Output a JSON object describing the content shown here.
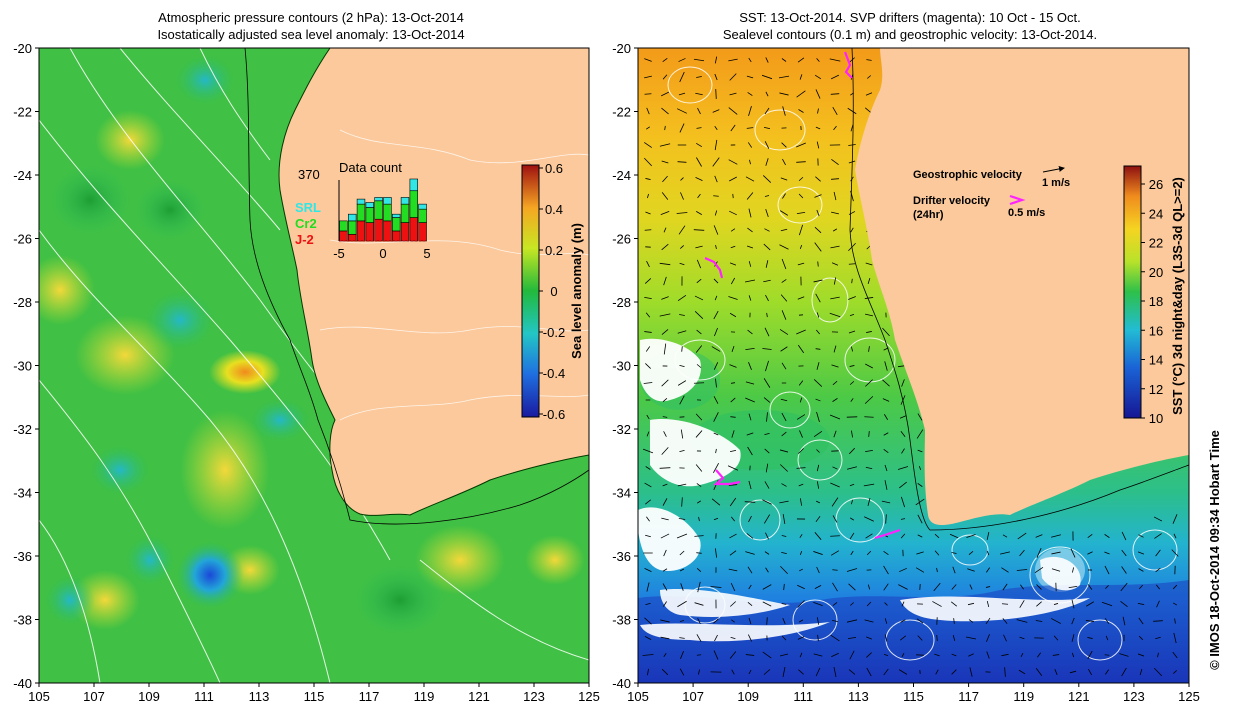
{
  "left_panel": {
    "title_line1": "Atmospheric pressure contours (2 hPa): 13-Oct-2014",
    "title_line2": "Isostatically adjusted sea level anomaly: 13-Oct-2014",
    "y_ticks": [
      "-20",
      "-22",
      "-24",
      "-26",
      "-28",
      "-30",
      "-32",
      "-34",
      "-36",
      "-38",
      "-40"
    ],
    "x_ticks": [
      "105",
      "107",
      "109",
      "111",
      "113",
      "115",
      "117",
      "119",
      "121",
      "123",
      "125"
    ],
    "colorbar_label": "Sea level anomaly (m)",
    "colorbar_ticks": [
      "0.6",
      "0.4",
      "0.2",
      "0",
      "-0.2",
      "-0.4",
      "-0.6"
    ],
    "inset": {
      "title": "Data count",
      "max_label": "370",
      "x_ticks": [
        "-5",
        "0",
        "5"
      ],
      "legend": [
        {
          "label": "SRL",
          "color": "#33e6e6"
        },
        {
          "label": "Cr2",
          "color": "#22dd22"
        },
        {
          "label": "J-2",
          "color": "#ee1111"
        }
      ],
      "chart_data": {
        "type": "bar",
        "title": "Data count",
        "x": [
          -5,
          -4,
          -3,
          -2,
          -1,
          0,
          1,
          2,
          3,
          4
        ],
        "series": [
          {
            "name": "J-2",
            "values": [
              60,
              40,
              120,
              110,
              130,
              120,
              60,
              110,
              140,
              110
            ]
          },
          {
            "name": "Cr2",
            "values": [
              60,
              80,
              100,
              90,
              110,
              100,
              80,
              110,
              160,
              80
            ]
          },
          {
            "name": "SRL",
            "values": [
              0,
              40,
              30,
              30,
              20,
              40,
              20,
              40,
              70,
              30
            ]
          }
        ],
        "ymax": 370
      }
    }
  },
  "right_panel": {
    "title_line1": "SST: 13-Oct-2014. SVP drifters (magenta): 10 Oct - 15 Oct.",
    "title_line2": "Sealevel contours (0.1 m) and geostrophic velocity: 13-Oct-2014.",
    "y_ticks": [
      "-20",
      "-22",
      "-24",
      "-26",
      "-28",
      "-30",
      "-32",
      "-34",
      "-36",
      "-38",
      "-40"
    ],
    "x_ticks": [
      "105",
      "107",
      "109",
      "111",
      "113",
      "115",
      "117",
      "119",
      "121",
      "123",
      "125"
    ],
    "colorbar_label": "SST (°C) 3d night&day (L3S-3d QL>=2)",
    "colorbar_ticks": [
      "26",
      "24",
      "22",
      "20",
      "18",
      "16",
      "14",
      "12",
      "10"
    ],
    "legend_geo": "Geostrophic velocity",
    "legend_geo_scale": "1 m/s",
    "legend_drifter": "Drifter velocity",
    "legend_drifter_period": "(24hr)",
    "legend_drifter_scale": "0.5 m/s"
  },
  "credit": "© IMOS 18-Oct-2014 09:34 Hobart Time",
  "colors": {
    "land": "#fbc99b",
    "drifter": "#ff22ff"
  }
}
